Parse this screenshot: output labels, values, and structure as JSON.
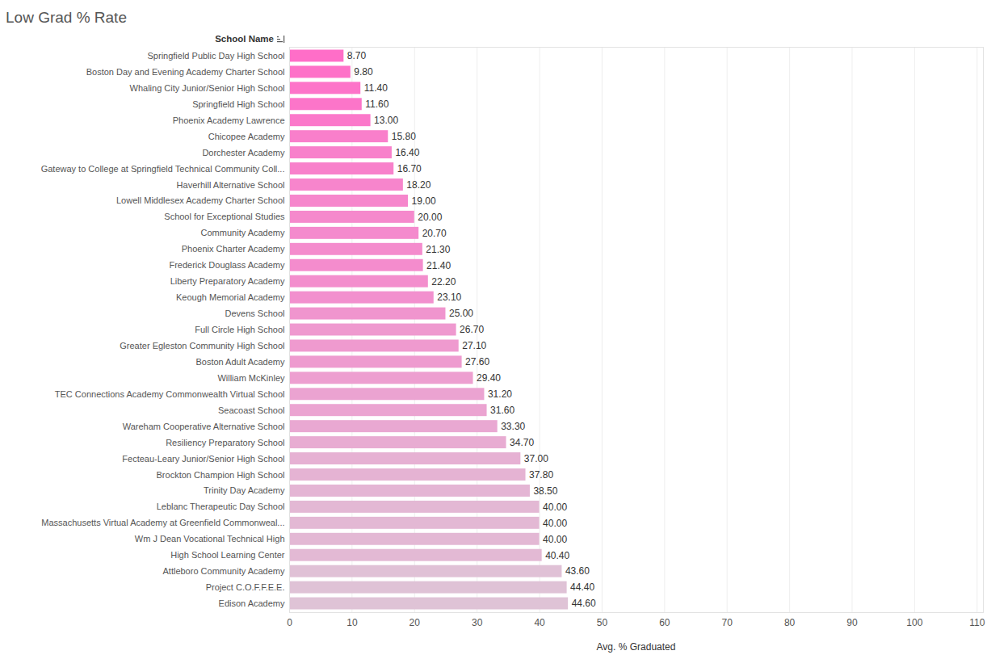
{
  "chart_data": {
    "type": "bar",
    "title": "Low Grad % Rate",
    "orientation": "horizontal",
    "x_label": "Avg. % Graduated",
    "y_label": "School Name",
    "categories": [
      "Springfield Public Day High School",
      "Boston Day and Evening Academy Charter School",
      "Whaling City Junior/Senior High School",
      "Springfield High School",
      "Phoenix Academy Lawrence",
      "Chicopee Academy",
      "Dorchester Academy",
      "Gateway to College at Springfield Technical Community Coll...",
      "Haverhill Alternative School",
      "Lowell Middlesex Academy Charter School",
      "School for Exceptional Studies",
      "Community Academy",
      "Phoenix Charter Academy",
      "Frederick Douglass Academy",
      "Liberty Preparatory Academy",
      "Keough Memorial Academy",
      "Devens School",
      "Full Circle High School",
      "Greater Egleston Community High School",
      "Boston Adult Academy",
      "William McKinley",
      "TEC Connections Academy Commonwealth Virtual School",
      "Seacoast School",
      "Wareham Cooperative Alternative School",
      "Resiliency Preparatory School",
      "Fecteau-Leary Junior/Senior High School",
      "Brockton Champion High School",
      "Trinity Day Academy",
      "Leblanc Therapeutic Day School",
      "Massachusetts Virtual Academy at Greenfield Commonweal...",
      "Wm J Dean Vocational Technical High",
      "High School Learning Center",
      "Attleboro Community Academy",
      "Project C.O.F.F.E.E.",
      "Edison Academy"
    ],
    "values": [
      8.7,
      9.8,
      11.4,
      11.6,
      13.0,
      15.8,
      16.4,
      16.7,
      18.2,
      19.0,
      20.0,
      20.7,
      21.3,
      21.4,
      22.2,
      23.1,
      25.0,
      26.7,
      27.1,
      27.6,
      29.4,
      31.2,
      31.6,
      33.3,
      34.7,
      37.0,
      37.8,
      38.5,
      40.0,
      40.0,
      40.0,
      40.4,
      43.6,
      44.4,
      44.6
    ],
    "value_labels": [
      "8.70",
      "9.80",
      "11.40",
      "11.60",
      "13.00",
      "15.80",
      "16.40",
      "16.70",
      "18.20",
      "19.00",
      "20.00",
      "20.70",
      "21.30",
      "21.40",
      "22.20",
      "23.10",
      "25.00",
      "26.70",
      "27.10",
      "27.60",
      "29.40",
      "31.20",
      "31.60",
      "33.30",
      "34.70",
      "37.00",
      "37.80",
      "38.50",
      "40.00",
      "40.00",
      "40.00",
      "40.40",
      "43.60",
      "44.40",
      "44.60"
    ],
    "colors": [
      "#ff6ec8",
      "#fe71c8",
      "#fd74c9",
      "#fc75c9",
      "#fb78ca",
      "#f97fcb",
      "#f880cb",
      "#f881cb",
      "#f785cc",
      "#f686cc",
      "#f589cc",
      "#f48acd",
      "#f48ccd",
      "#f48ccd",
      "#f38ecd",
      "#f290ce",
      "#f095ce",
      "#ef99cf",
      "#ef9acf",
      "#ee9bcf",
      "#ed9fd0",
      "#eba3d1",
      "#eba4d1",
      "#e9a8d2",
      "#e8acd2",
      "#e6b1d3",
      "#e5b3d3",
      "#e4b5d4",
      "#e3b8d4",
      "#e3b8d4",
      "#e3b8d4",
      "#e3b9d4",
      "#e0c1d6",
      "#dfc2d6",
      "#dfc3d6"
    ],
    "xlim": [
      0,
      111
    ],
    "xticks": [
      0,
      10,
      20,
      30,
      40,
      50,
      60,
      70,
      80,
      90,
      100,
      110
    ],
    "grid": true,
    "data_labels": true
  }
}
